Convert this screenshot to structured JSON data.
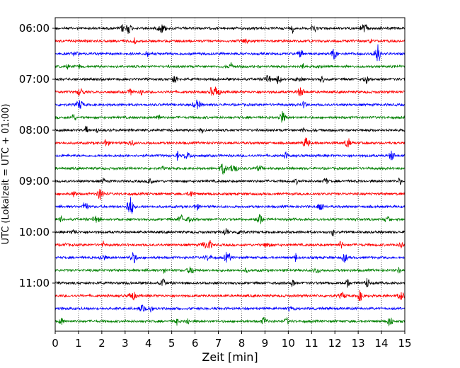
{
  "chart_data": {
    "type": "line",
    "title": "",
    "xlabel": "Zeit  [min]",
    "ylabel": "UTC (Lokalzeit = UTC + 01:00)",
    "xlim": [
      0,
      15
    ],
    "xticks": [
      0,
      1,
      2,
      3,
      4,
      5,
      6,
      7,
      8,
      9,
      10,
      11,
      12,
      13,
      14,
      15
    ],
    "grid": "vertical dotted lines at each minute",
    "trace_interval_min": 15,
    "colors_cycle": [
      "#000000",
      "#ff0000",
      "#0000ff",
      "#008000"
    ],
    "y_tick_labels": [
      "06:00",
      "07:00",
      "08:00",
      "09:00",
      "10:00",
      "11:00"
    ],
    "traces": [
      {
        "start": "06:00",
        "color": "#000000"
      },
      {
        "start": "06:15",
        "color": "#ff0000"
      },
      {
        "start": "06:30",
        "color": "#0000ff"
      },
      {
        "start": "06:45",
        "color": "#008000"
      },
      {
        "start": "07:00",
        "color": "#000000"
      },
      {
        "start": "07:15",
        "color": "#ff0000"
      },
      {
        "start": "07:30",
        "color": "#0000ff"
      },
      {
        "start": "07:45",
        "color": "#008000"
      },
      {
        "start": "08:00",
        "color": "#000000"
      },
      {
        "start": "08:15",
        "color": "#ff0000"
      },
      {
        "start": "08:30",
        "color": "#0000ff"
      },
      {
        "start": "08:45",
        "color": "#008000"
      },
      {
        "start": "09:00",
        "color": "#000000"
      },
      {
        "start": "09:15",
        "color": "#ff0000"
      },
      {
        "start": "09:30",
        "color": "#0000ff"
      },
      {
        "start": "09:45",
        "color": "#008000"
      },
      {
        "start": "10:00",
        "color": "#000000"
      },
      {
        "start": "10:15",
        "color": "#ff0000"
      },
      {
        "start": "10:30",
        "color": "#0000ff"
      },
      {
        "start": "10:45",
        "color": "#008000"
      },
      {
        "start": "11:00",
        "color": "#000000"
      },
      {
        "start": "11:15",
        "color": "#ff0000"
      },
      {
        "start": "11:30",
        "color": "#0000ff"
      },
      {
        "start": "11:45",
        "color": "#008000"
      }
    ]
  }
}
